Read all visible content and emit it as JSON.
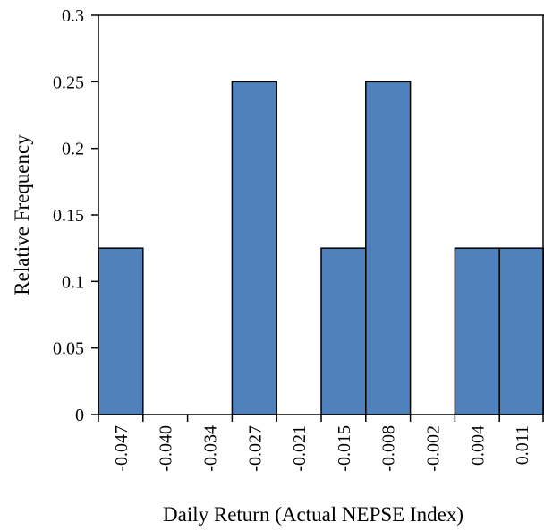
{
  "chart_data": {
    "type": "bar",
    "categories": [
      "-0.047",
      "-0.040",
      "-0.034",
      "-0.027",
      "-0.021",
      "-0.015",
      "-0.008",
      "-0.002",
      "0.004",
      "0.011"
    ],
    "values": [
      0.125,
      0,
      0,
      0.25,
      0,
      0.125,
      0.25,
      0,
      0.125,
      0.125
    ],
    "color": "#4f81bd",
    "x_label": "Daily Return (Actual NEPSE Index)",
    "y_label": "Relative Frequency",
    "ylim": [
      0,
      0.3
    ],
    "yticks": [
      0,
      0.05,
      0.1,
      0.15,
      0.2,
      0.25,
      0.3
    ]
  }
}
